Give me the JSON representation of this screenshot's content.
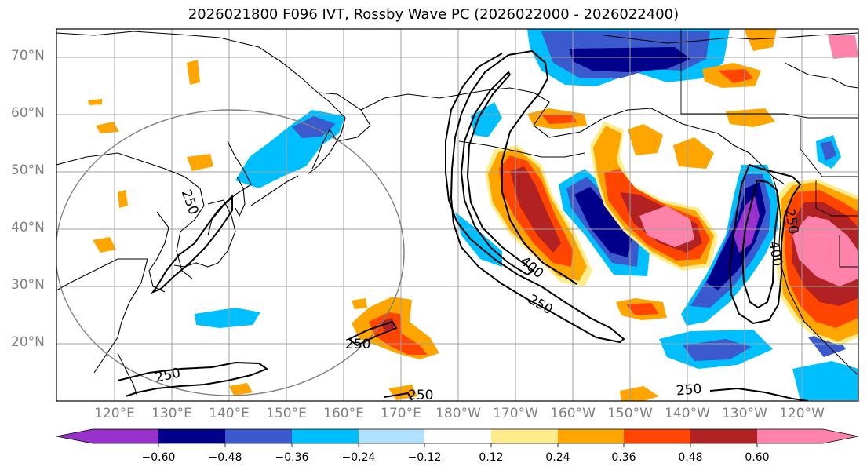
{
  "title": "2026021800 F096 IVT, Rossby Wave PC (2026022000 - 2026022400)",
  "lat_labels": [
    "70°N",
    "60°N",
    "50°N",
    "40°N",
    "30°N",
    "20°N"
  ],
  "lon_labels": [
    "120°E",
    "130°E",
    "140°E",
    "150°E",
    "160°E",
    "170°E",
    "180°W",
    "170°W",
    "160°W",
    "150°W",
    "140°W",
    "130°W",
    "120°W"
  ],
  "contour_labels": [
    "250",
    "400",
    "250",
    "250",
    "250",
    "250",
    "250",
    "400",
    "250"
  ],
  "colorbar": {
    "ticks": [
      "−0.60",
      "−0.48",
      "−0.36",
      "−0.24",
      "−0.12",
      "0.12",
      "0.24",
      "0.36",
      "0.48",
      "0.60"
    ],
    "colors": [
      "#9932cc",
      "#00008b",
      "#3a5acd",
      "#00bfff",
      "#b0e2ff",
      "#ffffff",
      "#ffec8b",
      "#ffa500",
      "#ff4500",
      "#b22222",
      "#ff82ab"
    ]
  },
  "map_extent": {
    "lon_min": 110,
    "lon_max": 250,
    "lat_min": 10,
    "lat_max": 75
  }
}
